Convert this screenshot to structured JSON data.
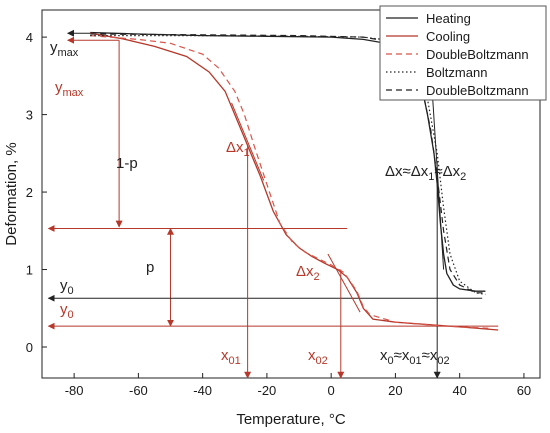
{
  "chart_data": {
    "type": "line",
    "xlabel": "Temperature, °C",
    "ylabel": "Deformation, %",
    "xlim": [
      -90,
      65
    ],
    "ylim": [
      -0.4,
      4.35
    ],
    "xticks": [
      -80,
      -60,
      -40,
      -20,
      0,
      20,
      40,
      60
    ],
    "yticks": [
      0,
      1,
      2,
      3,
      4
    ],
    "legend_position": "top-right",
    "colors": {
      "black": "#222222",
      "red": "#b5382a",
      "red_fit": "#d9544a"
    },
    "series": [
      {
        "name": "Heating",
        "color": "#222222",
        "style": "solid",
        "x": [
          -75,
          -60,
          -40,
          -20,
          0,
          10,
          20,
          25,
          28,
          30,
          32,
          33,
          34,
          35,
          36,
          38,
          40,
          45,
          48
        ],
        "y": [
          4.06,
          4.04,
          4.02,
          4.01,
          4.0,
          3.97,
          3.9,
          3.7,
          3.4,
          3.0,
          2.5,
          2.1,
          1.6,
          1.2,
          0.95,
          0.8,
          0.75,
          0.72,
          0.72
        ]
      },
      {
        "name": "Cooling",
        "color": "#b5382a",
        "style": "solid",
        "x": [
          -75,
          -65,
          -55,
          -45,
          -38,
          -33,
          -30,
          -27,
          -25,
          -22,
          -18,
          -14,
          -10,
          -6,
          -2,
          2,
          5,
          8,
          10,
          13,
          20,
          30,
          40,
          52
        ],
        "y": [
          4.05,
          3.98,
          3.88,
          3.75,
          3.55,
          3.3,
          3.0,
          2.7,
          2.5,
          2.2,
          1.75,
          1.45,
          1.28,
          1.17,
          1.08,
          1.0,
          0.9,
          0.7,
          0.5,
          0.36,
          0.32,
          0.29,
          0.26,
          0.22
        ]
      },
      {
        "name": "DoubleBoltzmann",
        "color": "#d9544a",
        "style": "dashed",
        "x": [
          -75,
          -60,
          -50,
          -40,
          -35,
          -30,
          -27,
          -24,
          -20,
          -16,
          -12,
          -8,
          -4,
          0,
          4,
          8,
          10,
          12,
          20,
          35,
          50
        ],
        "y": [
          4.02,
          3.97,
          3.92,
          3.78,
          3.6,
          3.3,
          3.0,
          2.6,
          2.1,
          1.6,
          1.35,
          1.22,
          1.14,
          1.06,
          0.96,
          0.72,
          0.52,
          0.42,
          0.32,
          0.27,
          0.24
        ]
      },
      {
        "name": "Boltzmann",
        "color": "#222222",
        "style": "dotted",
        "x": [
          -75,
          -40,
          -10,
          10,
          20,
          25,
          30,
          33,
          35,
          37,
          40,
          45,
          48
        ],
        "y": [
          4.02,
          4.02,
          4.01,
          4.0,
          3.95,
          3.75,
          3.2,
          2.5,
          1.8,
          1.2,
          0.85,
          0.7,
          0.68
        ]
      },
      {
        "name": "DoubleBoltzmann",
        "color": "#222222",
        "style": "dashed",
        "x": [
          -75,
          -40,
          -10,
          10,
          20,
          25,
          28,
          31,
          33,
          35,
          37,
          40,
          45,
          48
        ],
        "y": [
          4.04,
          4.03,
          4.02,
          4.0,
          3.93,
          3.7,
          3.4,
          2.8,
          2.2,
          1.5,
          1.0,
          0.8,
          0.7,
          0.7
        ]
      }
    ],
    "annotations": {
      "ymax_black": "y",
      "ymax_black_sub": "max",
      "ymax_red": "y",
      "ymax_red_sub": "max",
      "one_minus_p": "1-p",
      "p": "p",
      "dx1": "Δx",
      "dx1_sub": "1",
      "dx2": "Δx",
      "dx2_sub": "2",
      "y0_black": "y",
      "y0_black_sub": "0",
      "y0_red": "y",
      "y0_red_sub": "0",
      "x01": "x",
      "x01_sub": "01",
      "x02": "x",
      "x02_sub": "02",
      "dx_eq": "Δx≈Δx",
      "dx_eq_sub1": "1",
      "dx_eq_mid": "≈Δx",
      "dx_eq_sub2": "2",
      "x0_eq": "x",
      "x0_eq_sub0": "0",
      "x0_eq_mid1": "≈x",
      "x0_eq_sub1": "01",
      "x0_eq_mid2": "≈x",
      "x0_eq_sub2": "02"
    }
  }
}
